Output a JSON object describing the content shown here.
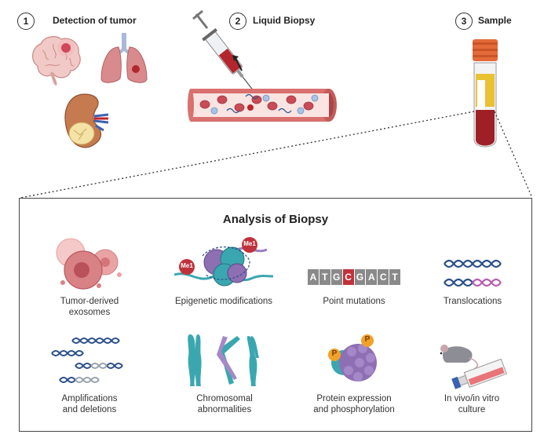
{
  "steps": [
    {
      "number": "1",
      "title": "Detection of  tumor",
      "organ_icons": [
        "brain-icon",
        "lungs-icon",
        "kidney-icon"
      ]
    },
    {
      "number": "2",
      "title": "Liquid Biopsy",
      "icons": [
        "syringe-icon",
        "blood-vessel-icon"
      ]
    },
    {
      "number": "3",
      "title": "Sample",
      "icons": [
        "blood-tube-icon"
      ]
    }
  ],
  "analysis": {
    "title": "Analysis of Biopsy",
    "items": [
      {
        "line1": "Tumor-derived",
        "line2": "exosomes",
        "icon": "exosomes-icon"
      },
      {
        "line1": "Epigenetic modifications",
        "line2": "",
        "icon": "nucleosome-icon",
        "marks": [
          "Me1",
          "Me1"
        ]
      },
      {
        "line1": "Point mutations",
        "line2": "",
        "icon": "dna-sequence-icon",
        "bases": [
          "A",
          "T",
          "G",
          "C",
          "G",
          "A",
          "C",
          "T"
        ],
        "mutated_index": 3
      },
      {
        "line1": "Translocations",
        "line2": "",
        "icon": "translocation-dna-icon"
      },
      {
        "line1": "Amplifications",
        "line2": "and deletions",
        "icon": "amplification-dna-icon"
      },
      {
        "line1": "Chromosomal",
        "line2": "abnormalities",
        "icon": "chromosomes-icon"
      },
      {
        "line1": "Protein expression",
        "line2": "and phosphorylation",
        "icon": "protein-icon",
        "marks": [
          "P",
          "P"
        ]
      },
      {
        "line1": "In vivo/in vitro",
        "line2": "culture",
        "icon": "mouse-flask-icon"
      }
    ]
  },
  "colors": {
    "blood": "#b3262d",
    "vessel": "#d9716f",
    "dna_blue": "#2a4f8a",
    "dna_teal": "#39a6a3",
    "protein_purple": "#8e6fb3",
    "chromosome_teal": "#3aa7b0"
  }
}
